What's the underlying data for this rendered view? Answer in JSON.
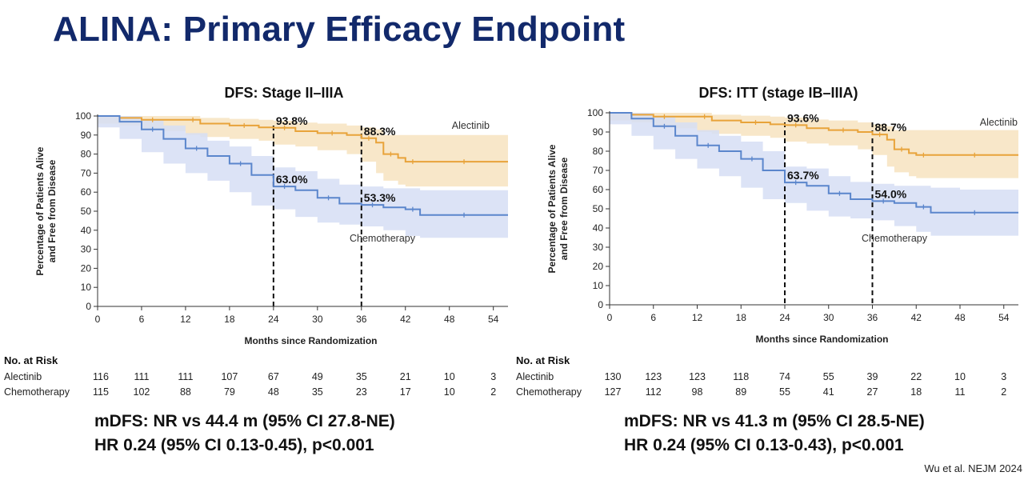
{
  "slide_title": "ALINA: Primary Efficacy Endpoint",
  "citation": "Wu et al. NEJM 2024",
  "colors": {
    "title": "#12296b",
    "alectinib_line": "#e8a33a",
    "alectinib_band": "#f7e3c0",
    "chemo_line": "#5b86cc",
    "chemo_band": "#d6def4"
  },
  "chart_data": [
    {
      "type": "line",
      "title": "DFS: Stage II–IIIA",
      "xlabel": "Months since Randomization",
      "ylabel": "Percentage of Patients Alive and Free from Disease",
      "xlim": [
        0,
        56
      ],
      "ylim": [
        0,
        100
      ],
      "xticks": [
        0,
        6,
        12,
        18,
        24,
        30,
        36,
        42,
        48,
        54
      ],
      "yticks": [
        0,
        10,
        20,
        30,
        40,
        50,
        60,
        70,
        80,
        90,
        100
      ],
      "reference_lines_x": [
        24,
        36
      ],
      "series": [
        {
          "name": "Alectinib",
          "x": [
            0,
            3,
            6,
            9,
            12,
            14,
            18,
            22,
            24,
            27,
            30,
            34,
            36,
            38,
            39,
            41,
            42,
            44,
            48,
            52,
            56
          ],
          "y": [
            100,
            99,
            98,
            98,
            98,
            96,
            95,
            94,
            93.8,
            92,
            91,
            90,
            88.3,
            86,
            80,
            78,
            76,
            76,
            76,
            76,
            76
          ],
          "upper": [
            100,
            100,
            100,
            100,
            100,
            99,
            98.5,
            98,
            97.5,
            96.5,
            96,
            95,
            94,
            93,
            90,
            90,
            90,
            90,
            90,
            90,
            90
          ],
          "lower": [
            100,
            96,
            95,
            93,
            92,
            90,
            89,
            88,
            87,
            85,
            84,
            82,
            80,
            76,
            70,
            66,
            64,
            63,
            63,
            63,
            63
          ]
        },
        {
          "name": "Chemotherapy",
          "x": [
            0,
            3,
            6,
            9,
            12,
            15,
            18,
            21,
            24,
            27,
            30,
            33,
            36,
            39,
            42,
            44,
            48,
            52,
            56
          ],
          "y": [
            100,
            97,
            93,
            88,
            83,
            79,
            75,
            69,
            63,
            61,
            57,
            54,
            53.3,
            52,
            51,
            48,
            48,
            48,
            48
          ],
          "upper": [
            100,
            100,
            98,
            95,
            91,
            87,
            84,
            79,
            73,
            71,
            67,
            64,
            63,
            62,
            62,
            61,
            61,
            61,
            61
          ],
          "lower": [
            100,
            94,
            88,
            81,
            75,
            70,
            66,
            60,
            53,
            51,
            47,
            44,
            43,
            42,
            40,
            37,
            36,
            36,
            36
          ]
        }
      ],
      "series_labels": [
        "Alectinib",
        "Chemotherapy"
      ],
      "callouts": [
        {
          "text": "93.8%",
          "x": 24,
          "y": 93.8
        },
        {
          "text": "88.3%",
          "x": 36,
          "y": 88.3
        },
        {
          "text": "63.0%",
          "x": 24,
          "y": 63.0
        },
        {
          "text": "53.3%",
          "x": 36,
          "y": 53.3
        }
      ],
      "risk_table": {
        "header": "No. at Risk",
        "rows": [
          {
            "label": "Alectinib",
            "values": [
              "116",
              "111",
              "111",
              "107",
              "67",
              "49",
              "35",
              "21",
              "10",
              "3"
            ]
          },
          {
            "label": "Chemotherapy",
            "values": [
              "115",
              "102",
              "88",
              "79",
              "48",
              "35",
              "23",
              "17",
              "10",
              "2"
            ]
          }
        ]
      },
      "summary": [
        "mDFS: NR vs 44.4 m (95% CI 27.8-NE)",
        "HR 0.24 (95% CI 0.13-0.45), p<0.001"
      ]
    },
    {
      "type": "line",
      "title": "DFS: ITT (stage IB–IIIA)",
      "xlabel": "Months since Randomization",
      "ylabel": "Percentage of Patients Alive and Free from Disease",
      "xlim": [
        0,
        56
      ],
      "ylim": [
        0,
        100
      ],
      "xticks": [
        0,
        6,
        12,
        18,
        24,
        30,
        36,
        42,
        48,
        54
      ],
      "yticks": [
        0,
        10,
        20,
        30,
        40,
        50,
        60,
        70,
        80,
        90,
        100
      ],
      "reference_lines_x": [
        24,
        36
      ],
      "series": [
        {
          "name": "Alectinib",
          "x": [
            0,
            3,
            6,
            9,
            12,
            14,
            18,
            22,
            24,
            27,
            30,
            34,
            36,
            38,
            39,
            41,
            42,
            44,
            48,
            52,
            56
          ],
          "y": [
            100,
            99,
            98,
            98,
            98,
            96,
            95,
            94,
            93.6,
            92,
            91,
            90,
            88.7,
            86,
            81,
            79,
            78,
            78,
            78,
            78,
            78
          ],
          "upper": [
            100,
            100,
            100,
            100,
            100,
            99,
            98.5,
            98,
            97.5,
            96.5,
            96,
            95,
            94,
            93,
            91,
            91,
            91,
            91,
            91,
            91,
            91
          ],
          "lower": [
            100,
            96,
            95,
            93,
            92,
            90,
            89,
            88,
            87,
            85,
            84,
            83,
            81,
            78,
            72,
            69,
            67,
            66,
            66,
            66,
            66
          ]
        },
        {
          "name": "Chemotherapy",
          "x": [
            0,
            3,
            6,
            9,
            12,
            15,
            18,
            21,
            24,
            27,
            30,
            33,
            36,
            39,
            42,
            44,
            48,
            52,
            56
          ],
          "y": [
            100,
            97,
            93,
            88,
            83,
            80,
            76,
            70,
            63.7,
            62,
            58,
            55,
            54.0,
            53,
            51,
            48,
            48,
            48,
            48
          ],
          "upper": [
            100,
            100,
            98,
            95,
            91,
            88,
            85,
            80,
            72,
            71,
            67,
            64,
            63,
            62,
            62,
            61,
            60,
            60,
            60
          ],
          "lower": [
            100,
            94,
            88,
            81,
            76,
            71,
            67,
            61,
            55,
            53,
            49,
            46,
            45,
            44,
            41,
            38,
            36,
            36,
            36
          ]
        }
      ],
      "series_labels": [
        "Alectinib",
        "Chemotherapy"
      ],
      "callouts": [
        {
          "text": "93.6%",
          "x": 24,
          "y": 93.6
        },
        {
          "text": "88.7%",
          "x": 36,
          "y": 88.7
        },
        {
          "text": "63.7%",
          "x": 24,
          "y": 63.7
        },
        {
          "text": "54.0%",
          "x": 36,
          "y": 54.0
        }
      ],
      "risk_table": {
        "header": "No. at Risk",
        "rows": [
          {
            "label": "Alectinib",
            "values": [
              "130",
              "123",
              "123",
              "118",
              "74",
              "55",
              "39",
              "22",
              "10",
              "3"
            ]
          },
          {
            "label": "Chemotherapy",
            "values": [
              "127",
              "112",
              "98",
              "89",
              "55",
              "41",
              "27",
              "18",
              "11",
              "2"
            ]
          }
        ]
      },
      "summary": [
        "mDFS: NR vs 41.3 m (95% CI 28.5-NE)",
        "HR 0.24 (95% CI 0.13-0.43), p<0.001"
      ]
    }
  ]
}
